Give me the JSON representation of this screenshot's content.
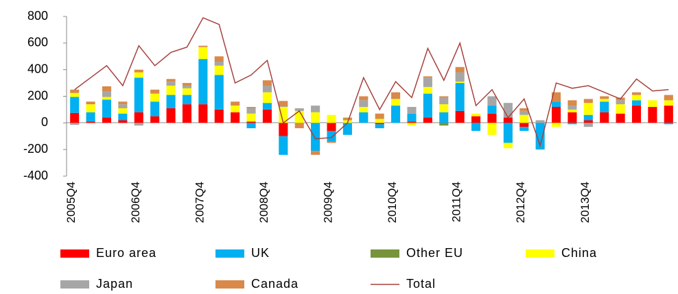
{
  "chart_data": {
    "type": "bar",
    "stacked": true,
    "categories": [
      "2005Q4",
      null,
      null,
      null,
      "2006Q4",
      null,
      null,
      null,
      "2007Q4",
      null,
      null,
      null,
      "2008Q4",
      null,
      null,
      null,
      "2009Q4",
      null,
      null,
      null,
      "2010Q4",
      null,
      null,
      null,
      "2011Q4",
      null,
      null,
      null,
      "2012Q4",
      null,
      null,
      null,
      "2013Q4",
      null,
      null,
      null,
      null,
      null
    ],
    "ylim": [
      -400,
      800
    ],
    "yticks": [
      -400,
      -200,
      0,
      200,
      400,
      600,
      800
    ],
    "series": [
      {
        "name": "Euro area",
        "color": "#ff0000",
        "values": [
          75,
          10,
          40,
          20,
          80,
          50,
          110,
          140,
          140,
          100,
          80,
          10,
          100,
          -100,
          0,
          0,
          -60,
          0,
          0,
          -10,
          0,
          10,
          40,
          0,
          90,
          50,
          70,
          40,
          -30,
          0,
          120,
          80,
          20,
          80,
          70,
          130,
          120,
          130
        ]
      },
      {
        "name": "UK",
        "color": "#00b0f0",
        "values": [
          120,
          70,
          135,
          50,
          260,
          110,
          100,
          70,
          340,
          260,
          0,
          -40,
          50,
          -140,
          0,
          -210,
          -80,
          -90,
          80,
          -30,
          130,
          60,
          180,
          80,
          210,
          -60,
          60,
          -150,
          -30,
          -200,
          40,
          -10,
          40,
          80,
          0,
          40,
          0,
          -10
        ]
      },
      {
        "name": "Other EU",
        "color": "#77933c",
        "values": [
          0,
          0,
          0,
          0,
          0,
          0,
          0,
          0,
          0,
          0,
          0,
          0,
          0,
          0,
          0,
          0,
          0,
          0,
          0,
          0,
          0,
          0,
          0,
          -20,
          0,
          0,
          0,
          0,
          0,
          0,
          0,
          0,
          0,
          0,
          0,
          0,
          0,
          0
        ]
      },
      {
        "name": "China",
        "color": "#ffff00",
        "values": [
          30,
          60,
          20,
          40,
          40,
          60,
          70,
          50,
          90,
          70,
          50,
          60,
          80,
          120,
          90,
          80,
          60,
          20,
          40,
          30,
          50,
          -20,
          50,
          60,
          10,
          20,
          -90,
          -40,
          60,
          0,
          -30,
          20,
          90,
          20,
          70,
          40,
          50,
          40
        ]
      },
      {
        "name": "Japan",
        "color": "#a6a6a6",
        "values": [
          -15,
          0,
          40,
          30,
          -20,
          0,
          30,
          20,
          0,
          30,
          0,
          40,
          50,
          5,
          20,
          50,
          0,
          0,
          50,
          0,
          0,
          50,
          70,
          50,
          70,
          0,
          70,
          110,
          30,
          20,
          0,
          30,
          -30,
          0,
          30,
          0,
          0,
          0
        ]
      },
      {
        "name": "Canada",
        "color": "#d9894a",
        "values": [
          25,
          20,
          40,
          20,
          20,
          30,
          20,
          20,
          10,
          40,
          30,
          10,
          40,
          40,
          -40,
          -30,
          -10,
          20,
          30,
          40,
          50,
          0,
          10,
          10,
          40,
          0,
          0,
          0,
          20,
          0,
          70,
          40,
          30,
          20,
          20,
          20,
          0,
          40
        ]
      },
      {
        "name": "Total",
        "color": "#a5413d",
        "type": "line",
        "values": [
          250,
          340,
          430,
          280,
          580,
          430,
          530,
          570,
          790,
          740,
          300,
          360,
          470,
          0,
          90,
          -120,
          -110,
          0,
          340,
          100,
          310,
          190,
          560,
          320,
          600,
          130,
          250,
          40,
          180,
          -170,
          300,
          260,
          280,
          230,
          180,
          330,
          240,
          250
        ]
      }
    ]
  }
}
